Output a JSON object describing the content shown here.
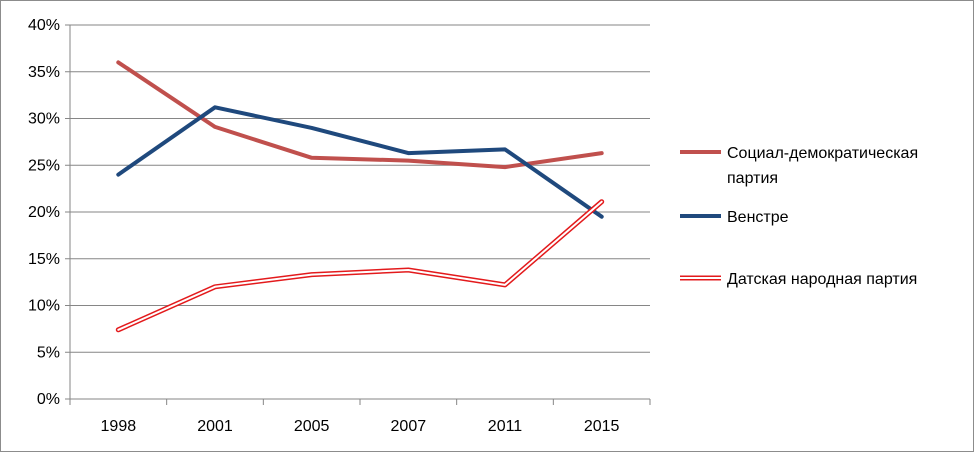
{
  "chart_data": {
    "type": "line",
    "title": "",
    "xlabel": "",
    "ylabel": "",
    "categories": [
      "1998",
      "2001",
      "2005",
      "2007",
      "2011",
      "2015"
    ],
    "ylim": [
      0,
      40
    ],
    "y_ticks": [
      "0%",
      "5%",
      "10%",
      "15%",
      "20%",
      "25%",
      "30%",
      "35%",
      "40%"
    ],
    "grid": "horizontal",
    "legend_position": "right",
    "series": [
      {
        "name": "Социал-демократическая партия",
        "legend_lines": [
          "Социал-демократическая",
          "партия"
        ],
        "values": [
          36.0,
          29.1,
          25.8,
          25.5,
          24.8,
          26.3
        ],
        "color": "#c0504d",
        "style": "solid"
      },
      {
        "name": "Венстре",
        "legend_lines": [
          "Венстре"
        ],
        "values": [
          24.0,
          31.2,
          29.0,
          26.3,
          26.7,
          19.5
        ],
        "color": "#1f497d",
        "style": "solid"
      },
      {
        "name": "Датская народная партия",
        "legend_lines": [
          "Датская народная партия"
        ],
        "values": [
          7.4,
          12.0,
          13.3,
          13.8,
          12.2,
          21.1
        ],
        "color": "#e31a1c",
        "style": "double"
      }
    ]
  }
}
